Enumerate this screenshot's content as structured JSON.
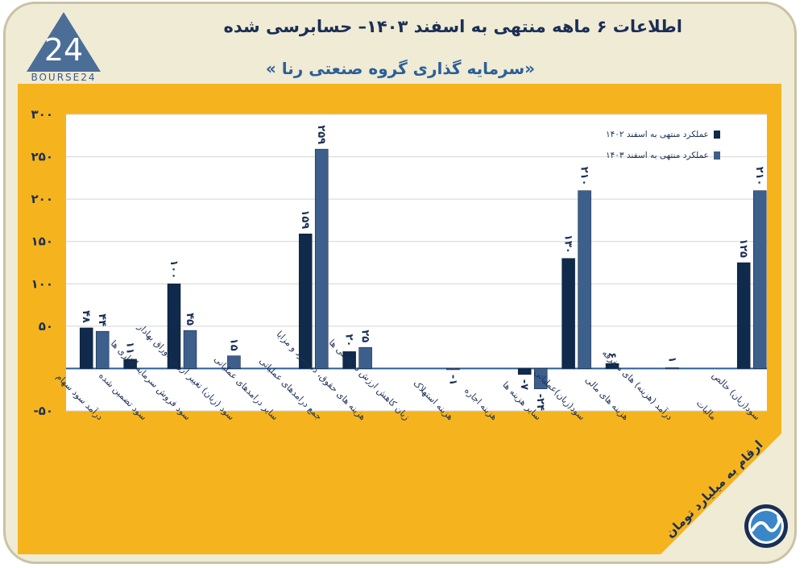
{
  "header": {
    "title": "اطلاعات ۶ ماهه منتهی به اسفند ۱۴۰۳– حسابرسی شده",
    "subtitle": "«سرمایه گذاری گروه صنعتی رنا »",
    "logo_text": "BOURSE24",
    "logo_mark": "24"
  },
  "units_note": "ارقام به میلیارد تومان",
  "colors": {
    "frame_bg": "#f0ebd5",
    "panel": "#f5b41d",
    "plot_bg": "#ffffff",
    "series_1402": "#0f2a4a",
    "series_1403": "#3d5f8c",
    "title": "#1b2f55",
    "subtitle": "#2b5f98"
  },
  "chart_data": {
    "type": "bar",
    "ylim": [
      -50,
      300
    ],
    "yticks": [
      -50,
      0,
      50,
      100,
      150,
      200,
      250,
      300
    ],
    "ytick_labels": [
      "-۵۰",
      "",
      "۵۰",
      "۱۰۰",
      "۱۵۰",
      "۲۰۰",
      "۲۵۰",
      "۳۰۰"
    ],
    "grid": true,
    "legend_position": "top-right",
    "categories": [
      "درآمد سود سهام",
      "سود تضمین شده",
      "سود فروش سرمایه گذاری ها",
      "سود (زیان) تغییر ارزش اوراق بهادار",
      "سایر درامدهای عملیاتی",
      "جمع درامدهای عملیاتی",
      "هزینه های حقوق، دستمزد و مزایا",
      "زیان کاهش ارزش دریافتنی ها",
      "هزینه استهلاک",
      "هزینه اجاره",
      "سایر هزینه ها",
      "سود(زیان)عملیاتی",
      "هزینه های مالی",
      "درآمد (هزینه) های متفرقه",
      "مالیات",
      "سود(زیان) خالص"
    ],
    "series": [
      {
        "name": "عملکرد منتهی به اسفند ۱۴۰۲",
        "values": [
          48,
          11,
          100,
          null,
          null,
          159,
          20,
          null,
          null,
          null,
          -7,
          130,
          6,
          null,
          null,
          125
        ],
        "labels": [
          "۴۸",
          "۱۱",
          "۱۰۰",
          "",
          "",
          "۱۵۹",
          "۲۰",
          "",
          "",
          "",
          "-۷",
          "۱۳۰",
          "۶",
          "",
          "",
          "۱۲۵"
        ]
      },
      {
        "name": "عملکرد منتهی به اسفند ۱۴۰۳",
        "values": [
          44,
          null,
          45,
          15,
          null,
          259,
          25,
          null,
          -1,
          null,
          -24,
          210,
          null,
          1,
          null,
          210
        ],
        "labels": [
          "۴۴",
          "",
          "۴۵",
          "۱۵",
          "",
          "۲۵۹",
          "۲۵",
          "",
          "-۱",
          "",
          "-۲۴",
          "۲۱۰",
          "",
          "۱",
          "",
          "۲۱۰"
        ]
      }
    ]
  }
}
